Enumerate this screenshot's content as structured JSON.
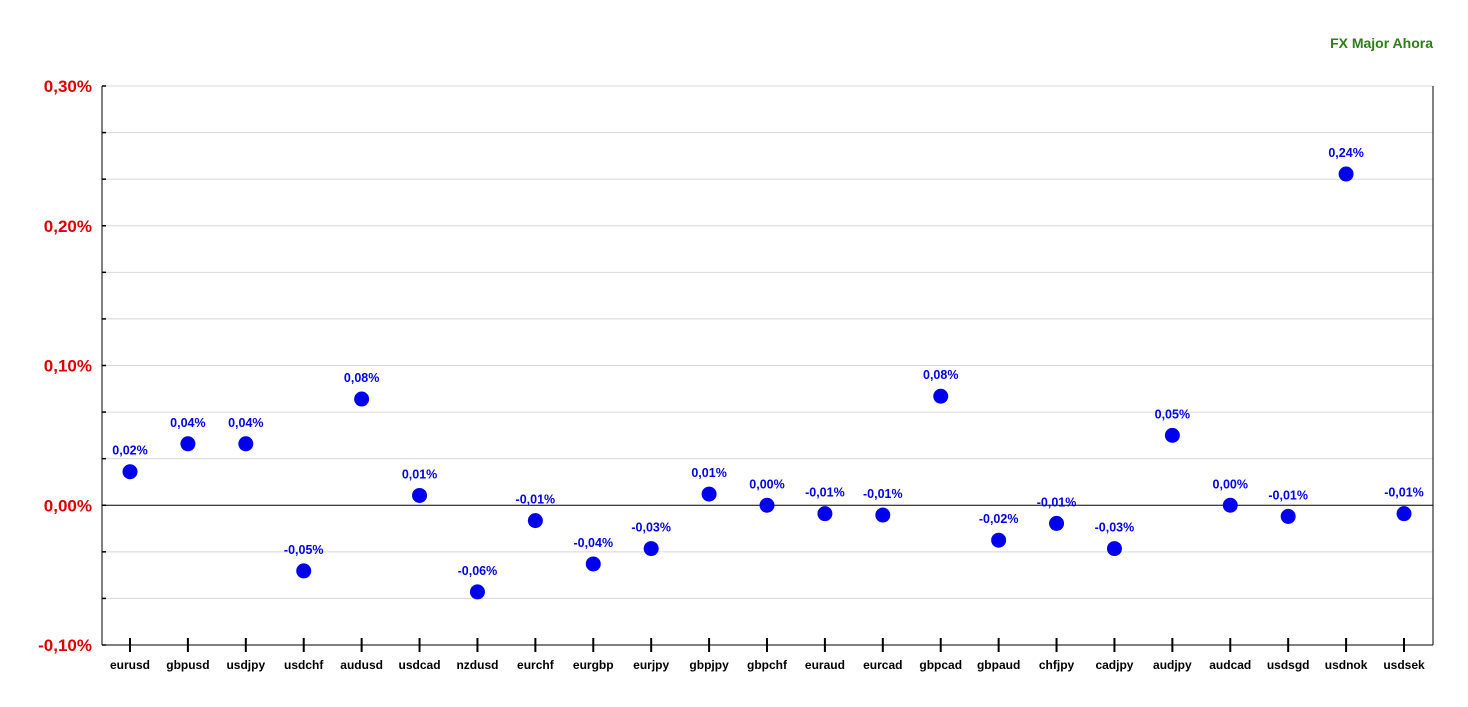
{
  "chart_data": {
    "type": "scatter",
    "title": "FX Major Ahora",
    "xlabel": "",
    "ylabel": "",
    "ylim": [
      -0.1,
      0.3
    ],
    "yticks": [
      -0.1,
      0.0,
      0.1,
      0.2,
      0.3
    ],
    "ytick_labels": [
      "-0,10%",
      "0,00%",
      "0,10%",
      "0,20%",
      "0,30%"
    ],
    "grid": true,
    "legend": "none",
    "categories": [
      "eurusd",
      "gbpusd",
      "usdjpy",
      "usdchf",
      "audusd",
      "usdcad",
      "nzdusd",
      "eurchf",
      "eurgbp",
      "eurjpy",
      "gbpjpy",
      "gbpchf",
      "euraud",
      "eurcad",
      "gbpcad",
      "gbpaud",
      "chfjpy",
      "cadjpy",
      "audjpy",
      "audcad",
      "usdsgd",
      "usdnok",
      "usdsek"
    ],
    "values": [
      0.024,
      0.044,
      0.044,
      -0.047,
      0.076,
      0.007,
      -0.062,
      -0.011,
      -0.042,
      -0.031,
      0.008,
      0.0,
      -0.006,
      -0.007,
      0.078,
      -0.025,
      -0.013,
      -0.031,
      0.05,
      0.0,
      -0.008,
      0.237,
      -0.006
    ],
    "data_labels": [
      "0,02%",
      "0,04%",
      "0,04%",
      "-0,05%",
      "0,08%",
      "0,01%",
      "-0,06%",
      "-0,01%",
      "-0,04%",
      "-0,03%",
      "0,01%",
      "0,00%",
      "-0,01%",
      "-0,01%",
      "0,08%",
      "-0,02%",
      "-0,01%",
      "-0,03%",
      "0,05%",
      "0,00%",
      "-0,01%",
      "0,24%",
      "-0,01%"
    ]
  },
  "colors": {
    "title": "#2e7d1a",
    "ytick_label": "#dd0000",
    "marker": "#0000ee",
    "data_label": "#0000ee",
    "axis": "#000000",
    "grid": "#d8d8d8"
  }
}
